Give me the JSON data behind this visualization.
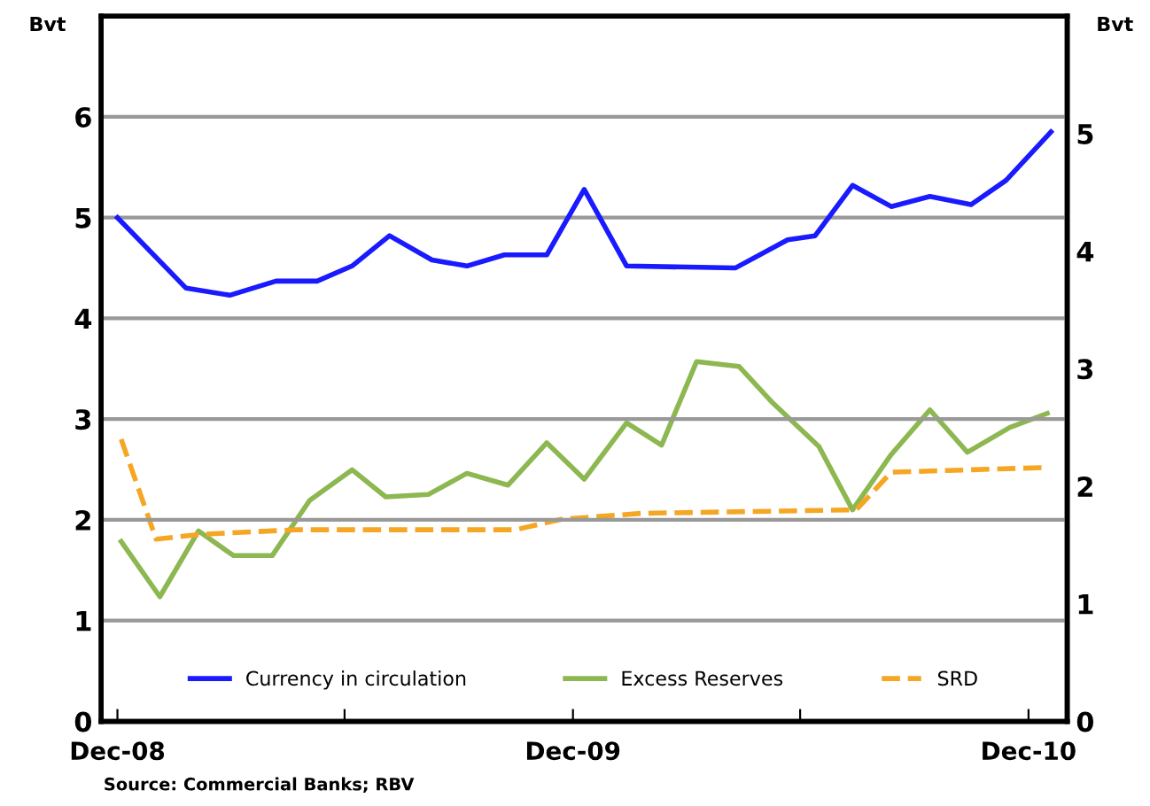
{
  "chart_data": {
    "type": "line",
    "ylabel": "Bvt",
    "y2label": "Bvt",
    "xlim": [
      "2008-11-18",
      "2011-01-01"
    ],
    "xticks": [
      {
        "value": "2008-12-01",
        "label": "Dec-08"
      },
      {
        "value": "2009-06-01",
        "label": null
      },
      {
        "value": "2009-12-01",
        "label": "Dec-09"
      },
      {
        "value": "2010-06-01",
        "label": null
      },
      {
        "value": "2010-12-01",
        "label": "Dec-10"
      }
    ],
    "ylim": [
      0,
      7
    ],
    "yticks": [
      0,
      1,
      2,
      3,
      4,
      5,
      6
    ],
    "y2lim": [
      0,
      6
    ],
    "y2ticks": [
      0,
      1,
      2,
      3,
      4,
      5
    ],
    "grid": "y",
    "legend": "bottom",
    "series": [
      {
        "name": "Currency in circulation",
        "color": "#1a1aff",
        "line_style": "solid",
        "x": [
          "2008-12-01",
          "2009-01-25",
          "2009-03-01",
          "2009-04-07",
          "2009-05-10",
          "2009-06-07",
          "2009-07-07",
          "2009-08-10",
          "2009-09-07",
          "2009-10-07",
          "2009-11-10",
          "2009-12-10",
          "2010-01-13",
          "2010-04-10",
          "2010-05-22",
          "2010-06-13",
          "2010-07-13",
          "2010-08-13",
          "2010-09-13",
          "2010-10-16",
          "2010-11-13",
          "2010-12-19"
        ],
        "values": [
          5.0,
          4.3,
          4.23,
          4.37,
          4.37,
          4.52,
          4.82,
          4.58,
          4.52,
          4.63,
          4.63,
          5.28,
          4.52,
          4.5,
          4.78,
          4.82,
          5.32,
          5.11,
          5.21,
          5.13,
          5.37,
          5.85
        ]
      },
      {
        "name": "Excess Reserves",
        "color": "#8db750",
        "line_style": "solid",
        "axis": "y2",
        "x": [
          "2008-12-04",
          "2009-01-04",
          "2009-02-04",
          "2009-03-04",
          "2009-04-04",
          "2009-05-04",
          "2009-06-07",
          "2009-07-04",
          "2009-08-07",
          "2009-09-07",
          "2009-10-10",
          "2009-11-10",
          "2009-12-10",
          "2010-01-13",
          "2010-02-10",
          "2010-03-10",
          "2010-04-13",
          "2010-05-10",
          "2010-06-16",
          "2010-07-13",
          "2010-08-13",
          "2010-09-13",
          "2010-10-13",
          "2010-11-16",
          "2010-12-16"
        ],
        "values": [
          1.53,
          1.06,
          1.62,
          1.41,
          1.41,
          1.88,
          2.14,
          1.91,
          1.93,
          2.11,
          2.01,
          2.37,
          2.06,
          2.54,
          2.35,
          3.06,
          3.02,
          2.71,
          2.34,
          1.8,
          2.27,
          2.65,
          2.29,
          2.5,
          2.62
        ]
      },
      {
        "name": "SRD",
        "color": "#f5a623",
        "line_style": "dashed",
        "axis": "y2",
        "x": [
          "2008-12-04",
          "2009-01-01",
          "2009-02-04",
          "2009-04-22",
          "2009-10-16",
          "2009-11-22",
          "2010-01-25",
          "2010-07-16",
          "2010-08-13",
          "2010-12-16"
        ],
        "values": [
          2.4,
          1.55,
          1.59,
          1.63,
          1.63,
          1.72,
          1.77,
          1.8,
          2.12,
          2.16
        ]
      }
    ],
    "annotations": [
      "Source: Commercial Banks; RBV"
    ]
  }
}
